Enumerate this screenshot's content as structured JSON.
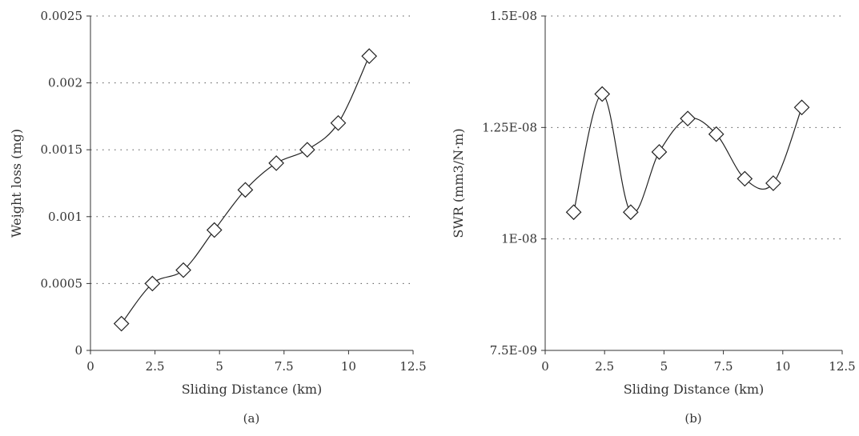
{
  "chart_data": [
    {
      "type": "line",
      "panel_label": "(a)",
      "xlabel": "Sliding Distance (km)",
      "ylabel": "Weight loss (mg)",
      "xlim": [
        0,
        12.5
      ],
      "ylim": [
        0,
        0.0025
      ],
      "x_ticks": [
        "0",
        "2.5",
        "5",
        "7.5",
        "10",
        "12.5"
      ],
      "x_tick_values": [
        0,
        2.5,
        5,
        7.5,
        10,
        12.5
      ],
      "y_ticks": [
        "0",
        "0.0005",
        "0.001",
        "0.0015",
        "0.002",
        "0.0025"
      ],
      "y_tick_values": [
        0,
        0.0005,
        0.001,
        0.0015,
        0.002,
        0.0025
      ],
      "grid": "horizontal dotted",
      "marker": "diamond",
      "smooth": true,
      "x": [
        1.2,
        2.4,
        3.6,
        4.8,
        6.0,
        7.2,
        8.4,
        9.6,
        10.8
      ],
      "y": [
        0.0002,
        0.0005,
        0.0006,
        0.0009,
        0.0012,
        0.0014,
        0.0015,
        0.0017,
        0.0022
      ]
    },
    {
      "type": "line",
      "panel_label": "(b)",
      "xlabel": "Sliding Distance (km)",
      "ylabel": "SWR (mm3/N·m)",
      "xlim": [
        0,
        12.5
      ],
      "ylim": [
        7.5e-09,
        1.5e-08
      ],
      "x_ticks": [
        "0",
        "2.5",
        "5",
        "7.5",
        "10",
        "12.5"
      ],
      "x_tick_values": [
        0,
        2.5,
        5,
        7.5,
        10,
        12.5
      ],
      "y_ticks": [
        "7.5E-09",
        "1E-08",
        "1.25E-08",
        "1.5E-08"
      ],
      "y_tick_values": [
        7.5e-09,
        1e-08,
        1.25e-08,
        1.5e-08
      ],
      "grid": "horizontal dotted",
      "marker": "diamond",
      "smooth": true,
      "x": [
        1.2,
        2.4,
        3.6,
        4.8,
        6.0,
        7.2,
        8.4,
        9.6,
        10.8
      ],
      "y": [
        1.06e-08,
        1.325e-08,
        1.06e-08,
        1.195e-08,
        1.27e-08,
        1.235e-08,
        1.135e-08,
        1.125e-08,
        1.295e-08
      ]
    }
  ]
}
